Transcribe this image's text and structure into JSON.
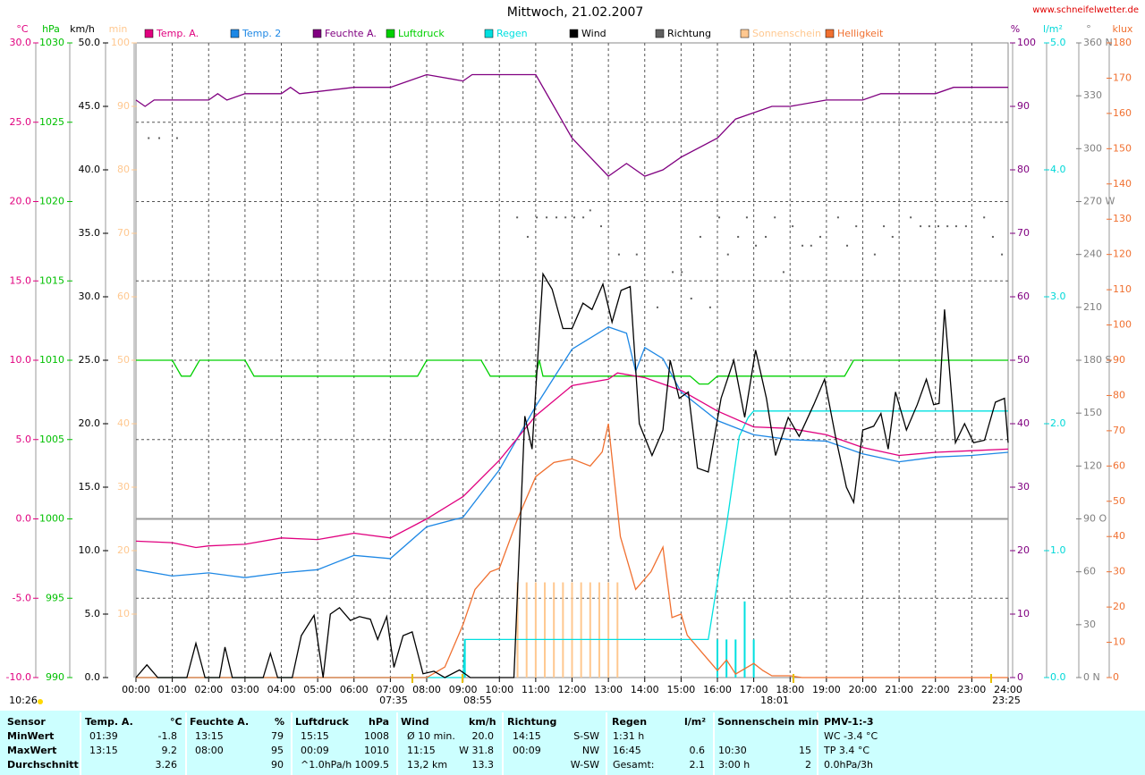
{
  "chart_data": {
    "type": "line",
    "title": "Mittwoch, 21.02.2007",
    "source": "www.schneifelwetter.de",
    "xlim": [
      0,
      24
    ],
    "xticks": [
      {
        "value": 0,
        "label": "00:00"
      },
      {
        "value": 1,
        "label": "01:00"
      },
      {
        "value": 2,
        "label": "02:00"
      },
      {
        "value": 3,
        "label": "03:00"
      },
      {
        "value": 4,
        "label": "04:00"
      },
      {
        "value": 5,
        "label": "05:00"
      },
      {
        "value": 6,
        "label": "06:00"
      },
      {
        "value": 7,
        "label": "07:00"
      },
      {
        "value": 8,
        "label": "08:00"
      },
      {
        "value": 9,
        "label": "09:00"
      },
      {
        "value": 10,
        "label": "10:00"
      },
      {
        "value": 11,
        "label": "11:00"
      },
      {
        "value": 12,
        "label": "12:00"
      },
      {
        "value": 13,
        "label": "13:00"
      },
      {
        "value": 14,
        "label": "14:00"
      },
      {
        "value": 15,
        "label": "15:00"
      },
      {
        "value": 16,
        "label": "16:00"
      },
      {
        "value": 17,
        "label": "17:00"
      },
      {
        "value": 18,
        "label": "18:00"
      },
      {
        "value": 19,
        "label": "19:00"
      },
      {
        "value": 20,
        "label": "20:00"
      },
      {
        "value": 21,
        "label": "21:00"
      },
      {
        "value": 22,
        "label": "22:00"
      },
      {
        "value": 23,
        "label": "23:00"
      },
      {
        "value": 24,
        "label": "24:00"
      }
    ],
    "grid": true,
    "grid_axis": "temp",
    "axes": {
      "temp": {
        "label": "°C",
        "color": "#e0007f",
        "lim": [
          -10,
          30
        ],
        "ticks": [
          {
            "value": -10,
            "label": "-10.0"
          },
          {
            "value": -5,
            "label": "-5.0"
          },
          {
            "value": 0,
            "label": "0.0"
          },
          {
            "value": 5,
            "label": "5.0"
          },
          {
            "value": 10,
            "label": "10.0"
          },
          {
            "value": 15,
            "label": "15.0"
          },
          {
            "value": 20,
            "label": "20.0"
          },
          {
            "value": 25,
            "label": "25.0"
          },
          {
            "value": 30,
            "label": "30.0"
          }
        ]
      },
      "pressure": {
        "label": "hPa",
        "color": "#00c000",
        "lim": [
          990,
          1030
        ],
        "ticks": [
          990,
          995,
          1000,
          1005,
          1010,
          1015,
          1020,
          1025,
          1030
        ]
      },
      "wind": {
        "label": "km/h",
        "color": "#000000",
        "lim": [
          0,
          50
        ],
        "ticks": [
          {
            "value": 0,
            "label": "0.0"
          },
          {
            "value": 5,
            "label": "5.0"
          },
          {
            "value": 10,
            "label": "10.0"
          },
          {
            "value": 15,
            "label": "15.0"
          },
          {
            "value": 20,
            "label": "20.0"
          },
          {
            "value": 25,
            "label": "25.0"
          },
          {
            "value": 30,
            "label": "30.0"
          },
          {
            "value": 35,
            "label": "35.0"
          },
          {
            "value": 40,
            "label": "40.0"
          },
          {
            "value": 45,
            "label": "45.0"
          },
          {
            "value": 50,
            "label": "50.0"
          }
        ]
      },
      "sun": {
        "label": "min",
        "color": "#ffc890",
        "lim": [
          0,
          100
        ],
        "ticks": [
          10,
          20,
          30,
          40,
          50,
          60,
          70,
          80,
          90,
          100
        ]
      },
      "humidity": {
        "label": "%",
        "color": "#800080",
        "lim": [
          0,
          100
        ],
        "ticks": [
          0,
          10,
          20,
          30,
          40,
          50,
          60,
          70,
          80,
          90,
          100
        ]
      },
      "rain": {
        "label": "l/m²",
        "color": "#00d8d8",
        "lim": [
          0,
          5
        ],
        "ticks": [
          {
            "value": 0,
            "label": "0.0"
          },
          {
            "value": 1,
            "label": "1.0"
          },
          {
            "value": 2,
            "label": "2.0"
          },
          {
            "value": 3,
            "label": "3.0"
          },
          {
            "value": 4,
            "label": "4.0"
          },
          {
            "value": 5,
            "label": "5.0"
          }
        ]
      },
      "direction": {
        "label": "°",
        "color": "#808080",
        "lim": [
          0,
          360
        ],
        "ticks": [
          {
            "value": 0,
            "label": "0 N"
          },
          30,
          60,
          {
            "value": 90,
            "label": "90 O"
          },
          120,
          150,
          {
            "value": 180,
            "label": "180 S"
          },
          210,
          240,
          {
            "value": 270,
            "label": "270 W"
          },
          300,
          330,
          {
            "value": 360,
            "label": "360 N"
          }
        ]
      },
      "light": {
        "label": "klux",
        "color": "#f07030",
        "lim": [
          0,
          180
        ],
        "ticks": [
          0,
          10,
          20,
          30,
          40,
          50,
          60,
          70,
          80,
          90,
          100,
          110,
          120,
          130,
          140,
          150,
          160,
          170,
          180
        ]
      }
    },
    "series": [
      {
        "name": "Temp. A.",
        "color": "#e0007f",
        "axis": "temp",
        "kind": "line",
        "x": [
          0,
          1,
          1.65,
          2,
          3,
          4,
          5,
          6,
          7,
          8,
          9,
          10,
          11,
          12,
          13,
          13.25,
          14,
          15,
          16,
          17,
          18,
          19,
          20,
          21,
          22,
          23,
          24
        ],
        "values": [
          -1.4,
          -1.5,
          -1.8,
          -1.7,
          -1.6,
          -1.2,
          -1.3,
          -0.9,
          -1.2,
          0,
          1.4,
          3.7,
          6.5,
          8.4,
          8.8,
          9.2,
          8.9,
          8.1,
          6.8,
          5.8,
          5.7,
          5.3,
          4.5,
          4.0,
          4.2,
          4.3,
          4.4
        ]
      },
      {
        "name": "Temp. 2",
        "color": "#1e88e5",
        "axis": "temp",
        "kind": "line",
        "x": [
          0,
          1,
          2,
          3,
          4,
          5,
          6,
          7,
          8,
          9,
          10,
          11,
          12,
          13,
          13.5,
          13.75,
          14,
          14.5,
          15,
          16,
          17,
          18,
          19,
          20,
          21,
          22,
          23,
          24
        ],
        "values": [
          -3.2,
          -3.6,
          -3.4,
          -3.7,
          -3.4,
          -3.2,
          -2.3,
          -2.5,
          -0.5,
          0.1,
          3.1,
          7.1,
          10.7,
          12.1,
          11.7,
          9.3,
          10.8,
          10.1,
          8.0,
          6.2,
          5.3,
          5.0,
          4.9,
          4.1,
          3.6,
          3.9,
          4.0,
          4.2
        ]
      },
      {
        "name": "Feuchte A.",
        "color": "#800080",
        "axis": "humidity",
        "kind": "line",
        "x": [
          0,
          0.25,
          0.5,
          2,
          2.25,
          2.5,
          3,
          4,
          4.25,
          4.5,
          6,
          7,
          7.5,
          8,
          9,
          9.25,
          10,
          11,
          11.5,
          12,
          12.5,
          13,
          13.5,
          14,
          14.5,
          15,
          16,
          16.5,
          17,
          17.5,
          18,
          19,
          20,
          20.5,
          22,
          22.5,
          24
        ],
        "values": [
          91,
          90,
          91,
          91,
          92,
          91,
          92,
          92,
          93,
          92,
          93,
          93,
          94,
          95,
          94,
          95,
          95,
          95,
          90,
          85,
          82,
          79,
          81,
          79,
          80,
          82,
          85,
          88,
          89,
          90,
          90,
          91,
          91,
          92,
          92,
          93,
          93
        ]
      },
      {
        "name": "Luftdruck",
        "color": "#00d000",
        "axis": "pressure",
        "kind": "line",
        "x": [
          0,
          1,
          1.25,
          1.5,
          1.75,
          3,
          3.25,
          7.75,
          8,
          9.5,
          9.75,
          11,
          11.1,
          11.2,
          15.25,
          15.5,
          15.75,
          16,
          19.5,
          19.75,
          24
        ],
        "values": [
          1010,
          1010,
          1009,
          1009,
          1010,
          1010,
          1009,
          1009,
          1010,
          1010,
          1009,
          1009,
          1010,
          1009,
          1009,
          1008.5,
          1008.5,
          1009,
          1009,
          1010,
          1010
        ]
      },
      {
        "name": "Regen",
        "color": "#00e0e0",
        "axis": "rain",
        "kind": "line",
        "x": [
          0,
          9.0,
          9.05,
          15.75,
          16.25,
          16.6,
          16.85,
          17,
          24
        ],
        "values": [
          0,
          0,
          0.3,
          0.3,
          1.2,
          1.9,
          2.05,
          2.1,
          2.1
        ],
        "intervals": {
          "x": [
            9.05,
            16.0,
            16.25,
            16.5,
            16.75,
            17.0
          ],
          "values": [
            0.3,
            0.3,
            0.3,
            0.3,
            0.6,
            0.3
          ]
        }
      },
      {
        "name": "Wind",
        "color": "#000000",
        "axis": "wind",
        "kind": "line",
        "x": [
          0,
          0.3,
          0.6,
          1.4,
          1.65,
          1.9,
          2.3,
          2.45,
          2.65,
          3.5,
          3.7,
          3.9,
          4.3,
          4.55,
          4.9,
          5.15,
          5.35,
          5.6,
          5.9,
          6.15,
          6.45,
          6.65,
          6.9,
          7.1,
          7.35,
          7.6,
          7.9,
          8.2,
          8.5,
          8.9,
          9.2,
          10.4,
          10.7,
          10.9,
          11.2,
          11.45,
          11.75,
          12.0,
          12.3,
          12.55,
          12.85,
          13.1,
          13.35,
          13.6,
          13.85,
          14.2,
          14.5,
          14.7,
          14.95,
          15.2,
          15.45,
          15.75,
          16.1,
          16.45,
          16.75,
          17.05,
          17.35,
          17.6,
          17.95,
          18.25,
          18.65,
          18.95,
          19.25,
          19.55,
          19.75,
          20.0,
          20.3,
          20.5,
          20.7,
          20.9,
          21.2,
          21.5,
          21.75,
          21.95,
          22.1,
          22.25,
          22.55,
          22.8,
          23.05,
          23.35,
          23.65,
          23.9,
          24
        ],
        "values": [
          0,
          1,
          0,
          0,
          2.7,
          0,
          0,
          2.4,
          0,
          0,
          1.9,
          0,
          0,
          3.3,
          4.9,
          0,
          5,
          5.5,
          4.5,
          4.8,
          4.6,
          3,
          4.8,
          0.8,
          3.3,
          3.6,
          0.3,
          0.5,
          0,
          0.6,
          0,
          0,
          20.6,
          18,
          31.8,
          30.6,
          27.5,
          27.5,
          29.5,
          29,
          31,
          28,
          30.5,
          30.8,
          20,
          17.5,
          19.5,
          25,
          22,
          22.5,
          16.5,
          16.2,
          22,
          25,
          20.5,
          25.8,
          22,
          17.5,
          20.5,
          19,
          21.5,
          23.5,
          19,
          15,
          13.8,
          19.5,
          19.8,
          20.8,
          18,
          22.5,
          19.5,
          21.5,
          23.5,
          21.5,
          21.6,
          29,
          18.5,
          20,
          18.5,
          18.7,
          21.7,
          22,
          18.5
        ]
      },
      {
        "name": "Richtung",
        "color": "#606060",
        "axis": "direction",
        "kind": "points",
        "x": [
          0.35,
          0.64,
          1.13,
          10.49,
          10.78,
          11.03,
          11.3,
          11.57,
          11.82,
          12.06,
          12.31,
          12.5,
          12.8,
          13.29,
          13.78,
          14.35,
          14.77,
          15.02,
          15.28,
          15.53,
          15.8,
          16.05,
          16.29,
          16.57,
          16.81,
          17.06,
          17.33,
          17.58,
          17.82,
          18.07,
          18.34,
          18.58,
          18.83,
          19.32,
          19.57,
          19.82,
          20.33,
          20.58,
          20.82,
          21.32,
          21.59,
          21.83,
          22.08,
          22.33,
          22.57,
          22.84,
          23.34,
          23.58,
          23.83
        ],
        "values": [
          306,
          306,
          306,
          261,
          250,
          261,
          261,
          261,
          261,
          261,
          261,
          265,
          256,
          240,
          240,
          210,
          230,
          230,
          215,
          250,
          210,
          261,
          240,
          250,
          261,
          245,
          250,
          261,
          230,
          256,
          245,
          245,
          250,
          261,
          245,
          256,
          240,
          256,
          250,
          261,
          256,
          256,
          256,
          256,
          256,
          256,
          261,
          250,
          240
        ]
      },
      {
        "name": "Sonnenschein",
        "color": "#ffc890",
        "axis": "sun",
        "kind": "bars",
        "x": [
          10.5,
          10.75,
          11,
          11.25,
          11.5,
          11.75,
          12,
          12.25,
          12.5,
          12.75,
          13,
          13.25
        ],
        "values": [
          15,
          15,
          15,
          15,
          15,
          15,
          15,
          15,
          15,
          15,
          15,
          15
        ]
      },
      {
        "name": "Helligkeit",
        "color": "#f07030",
        "axis": "light",
        "kind": "line",
        "x": [
          0,
          8,
          8.5,
          9,
          9.33,
          9.75,
          10,
          10.5,
          11,
          11.5,
          12,
          12.5,
          12.83,
          13,
          13.33,
          13.75,
          14.17,
          14.5,
          14.75,
          15,
          15.17,
          15.5,
          16,
          16.25,
          16.5,
          17,
          17.25,
          17.5,
          18,
          18.33,
          24
        ],
        "values": [
          0,
          0,
          3,
          15,
          25,
          30,
          31,
          45,
          57,
          61,
          62,
          60,
          64,
          72,
          40,
          25,
          30,
          37,
          17,
          18,
          12,
          8,
          2,
          5,
          1,
          4,
          2,
          0.5,
          0.5,
          0,
          0
        ]
      }
    ],
    "annotations": [
      "10:26",
      "07:35",
      "08:55",
      "18:01",
      "23:25"
    ]
  },
  "table": {
    "rows": [
      [
        "Sensor",
        "Temp. A.",
        "°C",
        "Feuchte A.",
        "%",
        "Luftdruck",
        "hPa",
        "Wind",
        "km/h",
        "Richtung",
        null,
        "Regen",
        "l/m²",
        "Sonnenschein min",
        null,
        "PMV-1:-3"
      ],
      [
        "MinWert",
        "01:39",
        "-1.8",
        "13:15",
        "79",
        "15:15",
        "1008",
        "Ø 10 min.",
        "20.0",
        "14:15",
        "S-SW",
        "1:31 h",
        null,
        null,
        null,
        "WC -3.4 °C"
      ],
      [
        "MaxWert",
        "13:15",
        "9.2",
        "08:00",
        "95",
        "00:09",
        "1010",
        "11:15",
        "W 31.8",
        "00:09",
        "NW",
        "16:45",
        "0.6",
        "10:30",
        "15",
        "TP 3.4 °C"
      ],
      [
        "Durchschnitt",
        null,
        "3.26",
        null,
        "90",
        "^1.0hPa/h",
        "1009.5",
        "13,2 km",
        "13.3",
        null,
        "W-SW",
        "Gesamt:",
        "2.1",
        "3:00 h",
        "2",
        "0.0hPa/3h"
      ]
    ]
  }
}
